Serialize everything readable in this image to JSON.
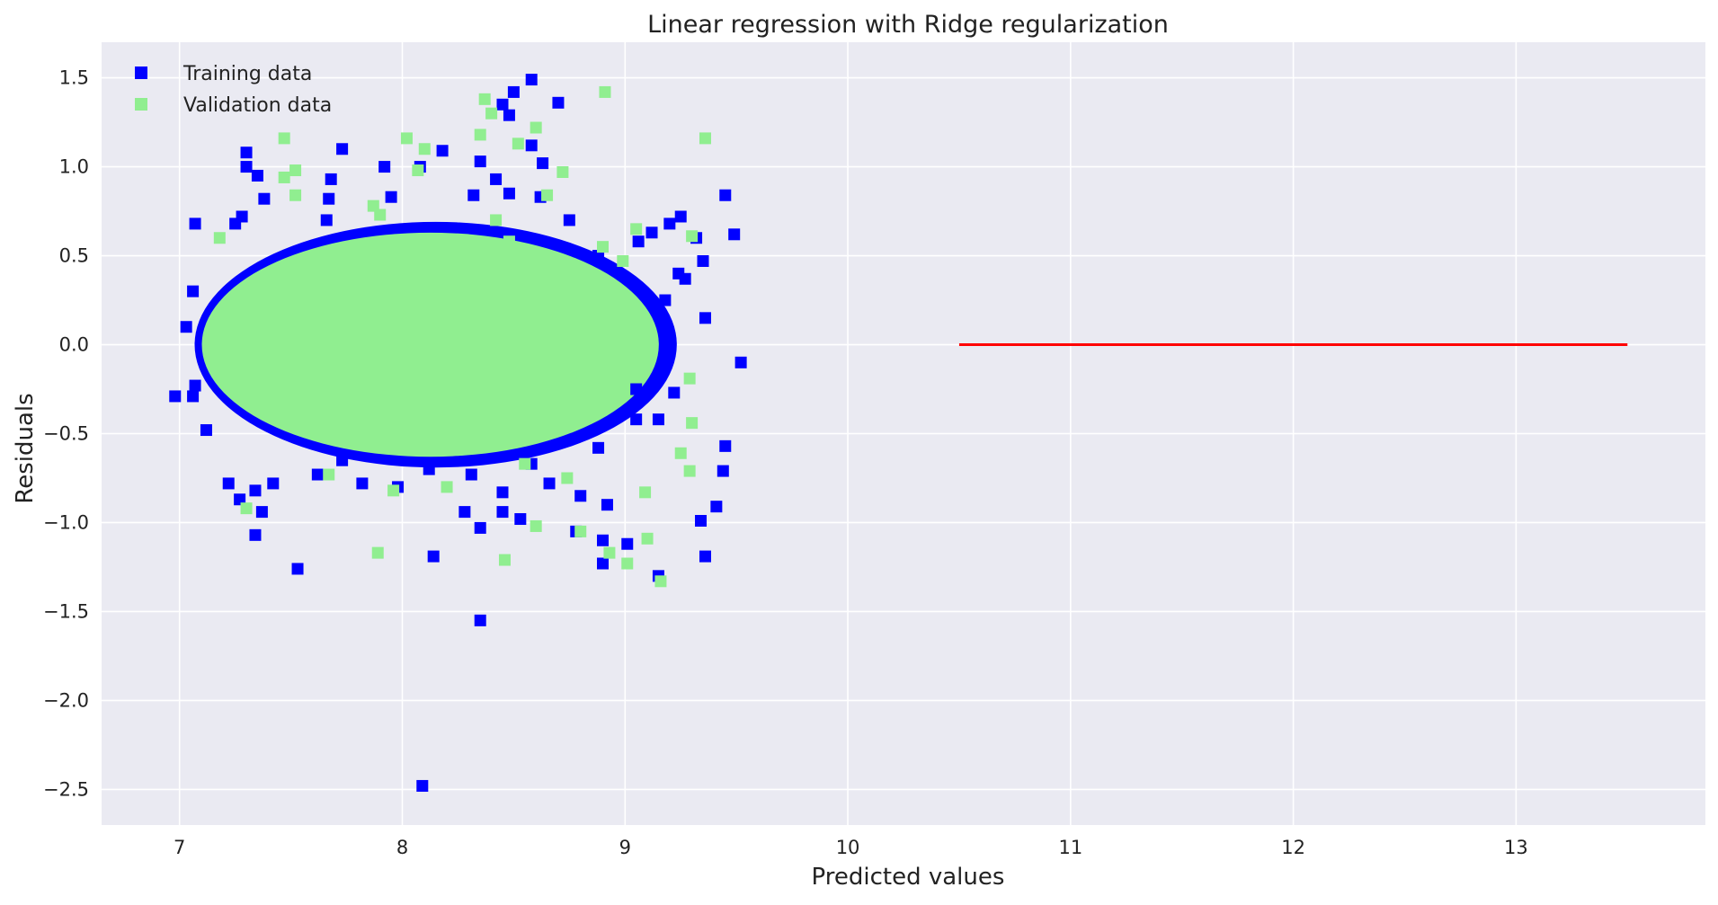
{
  "chart_data": {
    "type": "scatter",
    "title": "Linear regression with Ridge regularization",
    "xlabel": "Predicted values",
    "ylabel": "Residuals",
    "xlim": [
      6.65,
      13.85
    ],
    "ylim": [
      -2.7,
      1.7
    ],
    "xticks": [
      7,
      8,
      9,
      10,
      11,
      12,
      13
    ],
    "yticks": [
      1.5,
      1.0,
      0.5,
      0.0,
      -0.5,
      -1.0,
      -1.5,
      -2.0,
      -2.5
    ],
    "x_tick_labels": [
      "7",
      "8",
      "9",
      "10",
      "11",
      "12",
      "13"
    ],
    "y_tick_labels": [
      "1.5",
      "1.0",
      "0.5",
      "0.0",
      "−0.5",
      "−1.0",
      "−1.5",
      "−2.0",
      "−2.5"
    ],
    "grid": true,
    "legend_position": "top-left",
    "colors": {
      "plot_background": "#EAEAF2",
      "grid": "#FFFFFF",
      "training": "#0000FF",
      "validation": "#90EE90",
      "zero_line": "#FF0000"
    },
    "marker": "square",
    "cluster": {
      "x_range": [
        7.1,
        9.2
      ],
      "y_range": [
        -0.65,
        0.65
      ]
    },
    "series": [
      {
        "name": "Training data",
        "color": "#0000FF",
        "points": [
          [
            6.98,
            -0.29
          ],
          [
            7.03,
            0.1
          ],
          [
            7.06,
            -0.29
          ],
          [
            7.06,
            0.3
          ],
          [
            7.07,
            0.68
          ],
          [
            7.25,
            0.68
          ],
          [
            7.3,
            1.08
          ],
          [
            7.3,
            1.0
          ],
          [
            7.35,
            0.95
          ],
          [
            7.28,
            0.72
          ],
          [
            7.38,
            0.82
          ],
          [
            7.73,
            1.1
          ],
          [
            7.68,
            0.93
          ],
          [
            7.67,
            0.82
          ],
          [
            7.66,
            0.7
          ],
          [
            7.95,
            0.83
          ],
          [
            7.92,
            1.0
          ],
          [
            8.08,
            1.0
          ],
          [
            8.18,
            1.09
          ],
          [
            8.32,
            0.84
          ],
          [
            8.35,
            1.03
          ],
          [
            8.42,
            0.93
          ],
          [
            8.45,
            1.35
          ],
          [
            8.48,
            1.29
          ],
          [
            8.5,
            1.42
          ],
          [
            8.58,
            1.49
          ],
          [
            8.58,
            1.12
          ],
          [
            8.63,
            1.02
          ],
          [
            8.7,
            1.36
          ],
          [
            8.48,
            0.85
          ],
          [
            8.62,
            0.83
          ],
          [
            8.75,
            0.7
          ],
          [
            8.88,
            0.5
          ],
          [
            9.06,
            0.58
          ],
          [
            9.12,
            0.63
          ],
          [
            9.2,
            0.68
          ],
          [
            9.25,
            0.72
          ],
          [
            9.32,
            0.6
          ],
          [
            9.35,
            0.47
          ],
          [
            9.45,
            0.84
          ],
          [
            9.49,
            0.62
          ],
          [
            9.52,
            -0.1
          ],
          [
            9.36,
            0.15
          ],
          [
            9.24,
            0.4
          ],
          [
            9.45,
            -0.57
          ],
          [
            9.44,
            -0.71
          ],
          [
            9.41,
            -0.91
          ],
          [
            9.34,
            -0.99
          ],
          [
            9.36,
            -1.19
          ],
          [
            9.15,
            -1.3
          ],
          [
            9.01,
            -1.12
          ],
          [
            8.9,
            -1.1
          ],
          [
            8.92,
            -0.9
          ],
          [
            8.78,
            -1.05
          ],
          [
            8.8,
            -0.85
          ],
          [
            8.9,
            -1.23
          ],
          [
            8.53,
            -0.98
          ],
          [
            8.45,
            -0.94
          ],
          [
            8.45,
            -0.83
          ],
          [
            8.35,
            -1.03
          ],
          [
            8.35,
            -1.55
          ],
          [
            8.28,
            -0.94
          ],
          [
            8.14,
            -1.19
          ],
          [
            8.09,
            -2.48
          ],
          [
            7.98,
            -0.8
          ],
          [
            7.82,
            -0.78
          ],
          [
            7.53,
            -1.26
          ],
          [
            7.34,
            -1.07
          ],
          [
            7.37,
            -0.94
          ],
          [
            7.34,
            -0.82
          ],
          [
            7.27,
            -0.87
          ],
          [
            7.22,
            -0.78
          ],
          [
            7.12,
            -0.48
          ],
          [
            7.07,
            -0.23
          ],
          [
            7.42,
            -0.78
          ],
          [
            7.62,
            -0.73
          ],
          [
            7.73,
            -0.65
          ],
          [
            8.12,
            -0.7
          ],
          [
            8.31,
            -0.73
          ],
          [
            8.58,
            -0.67
          ],
          [
            8.66,
            -0.78
          ],
          [
            8.88,
            -0.58
          ],
          [
            9.05,
            -0.42
          ],
          [
            9.22,
            -0.27
          ],
          [
            9.18,
            0.25
          ],
          [
            9.27,
            0.37
          ],
          [
            9.15,
            -0.42
          ],
          [
            9.05,
            -0.25
          ]
        ]
      },
      {
        "name": "Validation data",
        "color": "#90EE90",
        "points": [
          [
            7.47,
            1.16
          ],
          [
            7.52,
            0.98
          ],
          [
            7.47,
            0.94
          ],
          [
            7.87,
            0.78
          ],
          [
            8.02,
            1.16
          ],
          [
            8.07,
            0.98
          ],
          [
            8.1,
            1.1
          ],
          [
            8.35,
            1.18
          ],
          [
            8.4,
            1.3
          ],
          [
            8.37,
            1.38
          ],
          [
            8.52,
            1.13
          ],
          [
            8.6,
            1.22
          ],
          [
            8.72,
            0.97
          ],
          [
            8.91,
            1.42
          ],
          [
            9.36,
            1.16
          ],
          [
            9.05,
            0.65
          ],
          [
            9.3,
            0.61
          ],
          [
            9.29,
            -0.19
          ],
          [
            9.3,
            -0.44
          ],
          [
            9.29,
            -0.71
          ],
          [
            9.1,
            -1.09
          ],
          [
            9.16,
            -1.33
          ],
          [
            9.01,
            -1.23
          ],
          [
            8.93,
            -1.17
          ],
          [
            8.8,
            -1.05
          ],
          [
            8.6,
            -1.02
          ],
          [
            8.46,
            -1.21
          ],
          [
            7.89,
            -1.17
          ],
          [
            7.96,
            -0.82
          ],
          [
            8.2,
            -0.8
          ],
          [
            8.55,
            -0.67
          ],
          [
            8.74,
            -0.75
          ],
          [
            9.09,
            -0.83
          ],
          [
            7.3,
            -0.92
          ],
          [
            7.67,
            -0.73
          ],
          [
            8.42,
            0.7
          ],
          [
            7.18,
            0.6
          ],
          [
            7.52,
            0.84
          ],
          [
            8.48,
            0.58
          ],
          [
            7.9,
            0.73
          ],
          [
            8.65,
            0.84
          ],
          [
            8.9,
            0.55
          ],
          [
            8.99,
            0.47
          ],
          [
            9.25,
            -0.61
          ]
        ]
      }
    ],
    "reference_line": {
      "x": [
        10.5,
        13.5
      ],
      "y": [
        0.0,
        0.0
      ],
      "color": "#FF0000"
    }
  }
}
